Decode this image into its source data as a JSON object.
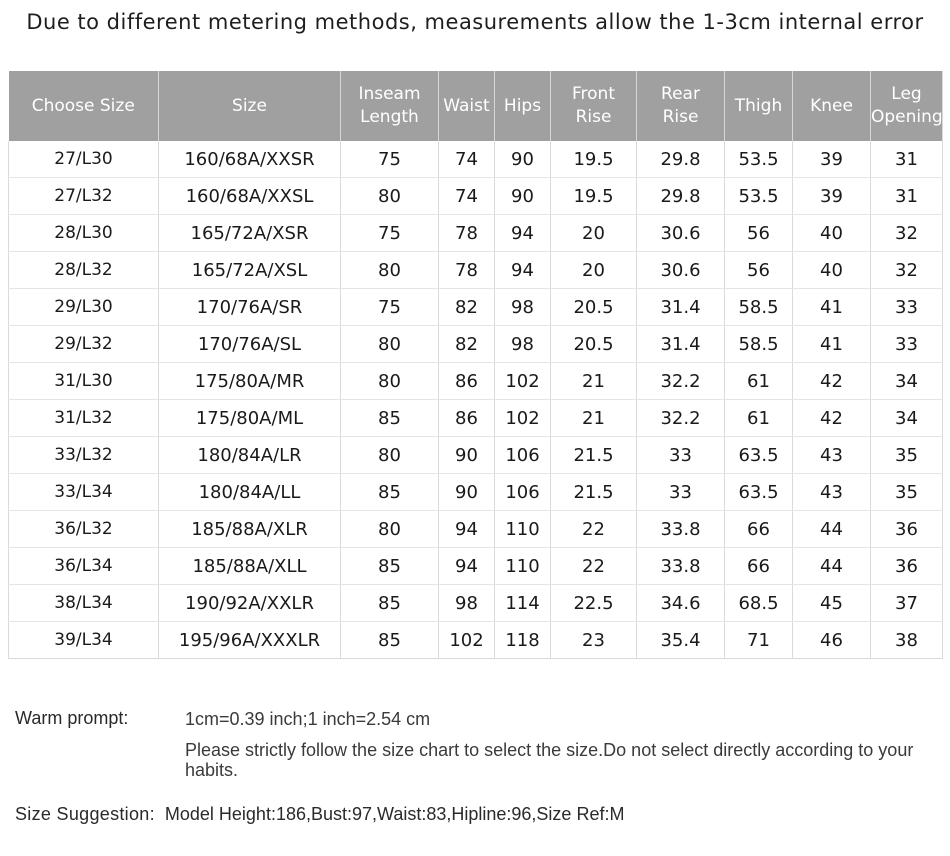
{
  "title": "Due to different metering methods, measurements allow the 1-3cm internal error",
  "table": {
    "headers": [
      [
        "Choose Size"
      ],
      [
        "Size"
      ],
      [
        "Inseam",
        "Length"
      ],
      [
        "Waist"
      ],
      [
        "Hips"
      ],
      [
        "Front",
        "Rise"
      ],
      [
        "Rear",
        "Rise"
      ],
      [
        "Thigh"
      ],
      [
        "Knee"
      ],
      [
        "Leg",
        "Opening"
      ]
    ],
    "rows": [
      [
        "27/L30",
        "160/68A/XXSR",
        "75",
        "74",
        "90",
        "19.5",
        "29.8",
        "53.5",
        "39",
        "31"
      ],
      [
        "27/L32",
        "160/68A/XXSL",
        "80",
        "74",
        "90",
        "19.5",
        "29.8",
        "53.5",
        "39",
        "31"
      ],
      [
        "28/L30",
        "165/72A/XSR",
        "75",
        "78",
        "94",
        "20",
        "30.6",
        "56",
        "40",
        "32"
      ],
      [
        "28/L32",
        "165/72A/XSL",
        "80",
        "78",
        "94",
        "20",
        "30.6",
        "56",
        "40",
        "32"
      ],
      [
        "29/L30",
        "170/76A/SR",
        "75",
        "82",
        "98",
        "20.5",
        "31.4",
        "58.5",
        "41",
        "33"
      ],
      [
        "29/L32",
        "170/76A/SL",
        "80",
        "82",
        "98",
        "20.5",
        "31.4",
        "58.5",
        "41",
        "33"
      ],
      [
        "31/L30",
        "175/80A/MR",
        "80",
        "86",
        "102",
        "21",
        "32.2",
        "61",
        "42",
        "34"
      ],
      [
        "31/L32",
        "175/80A/ML",
        "85",
        "86",
        "102",
        "21",
        "32.2",
        "61",
        "42",
        "34"
      ],
      [
        "33/L32",
        "180/84A/LR",
        "80",
        "90",
        "106",
        "21.5",
        "33",
        "63.5",
        "43",
        "35"
      ],
      [
        "33/L34",
        "180/84A/LL",
        "85",
        "90",
        "106",
        "21.5",
        "33",
        "63.5",
        "43",
        "35"
      ],
      [
        "36/L32",
        "185/88A/XLR",
        "80",
        "94",
        "110",
        "22",
        "33.8",
        "66",
        "44",
        "36"
      ],
      [
        "36/L34",
        "185/88A/XLL",
        "85",
        "94",
        "110",
        "22",
        "33.8",
        "66",
        "44",
        "36"
      ],
      [
        "38/L34",
        "190/92A/XXLR",
        "85",
        "98",
        "114",
        "22.5",
        "34.6",
        "68.5",
        "45",
        "37"
      ],
      [
        "39/L34",
        "195/96A/XXXLR",
        "85",
        "102",
        "118",
        "23",
        "35.4",
        "71",
        "46",
        "38"
      ]
    ]
  },
  "notes": {
    "warm_label": "Warm prompt:",
    "warm_line1": "1cm=0.39 inch;1 inch=2.54 cm",
    "warm_line2": "Please strictly follow the size chart  to select the size.Do not select directly according to your habits.",
    "suggestion_label": "Size Suggestion:",
    "suggestion_value": "Model Height:186,Bust:97,Waist:83,Hipline:96,Size Ref:M"
  },
  "colors": {
    "header_bg": "#a0a0a0",
    "header_text": "#ffffff"
  }
}
